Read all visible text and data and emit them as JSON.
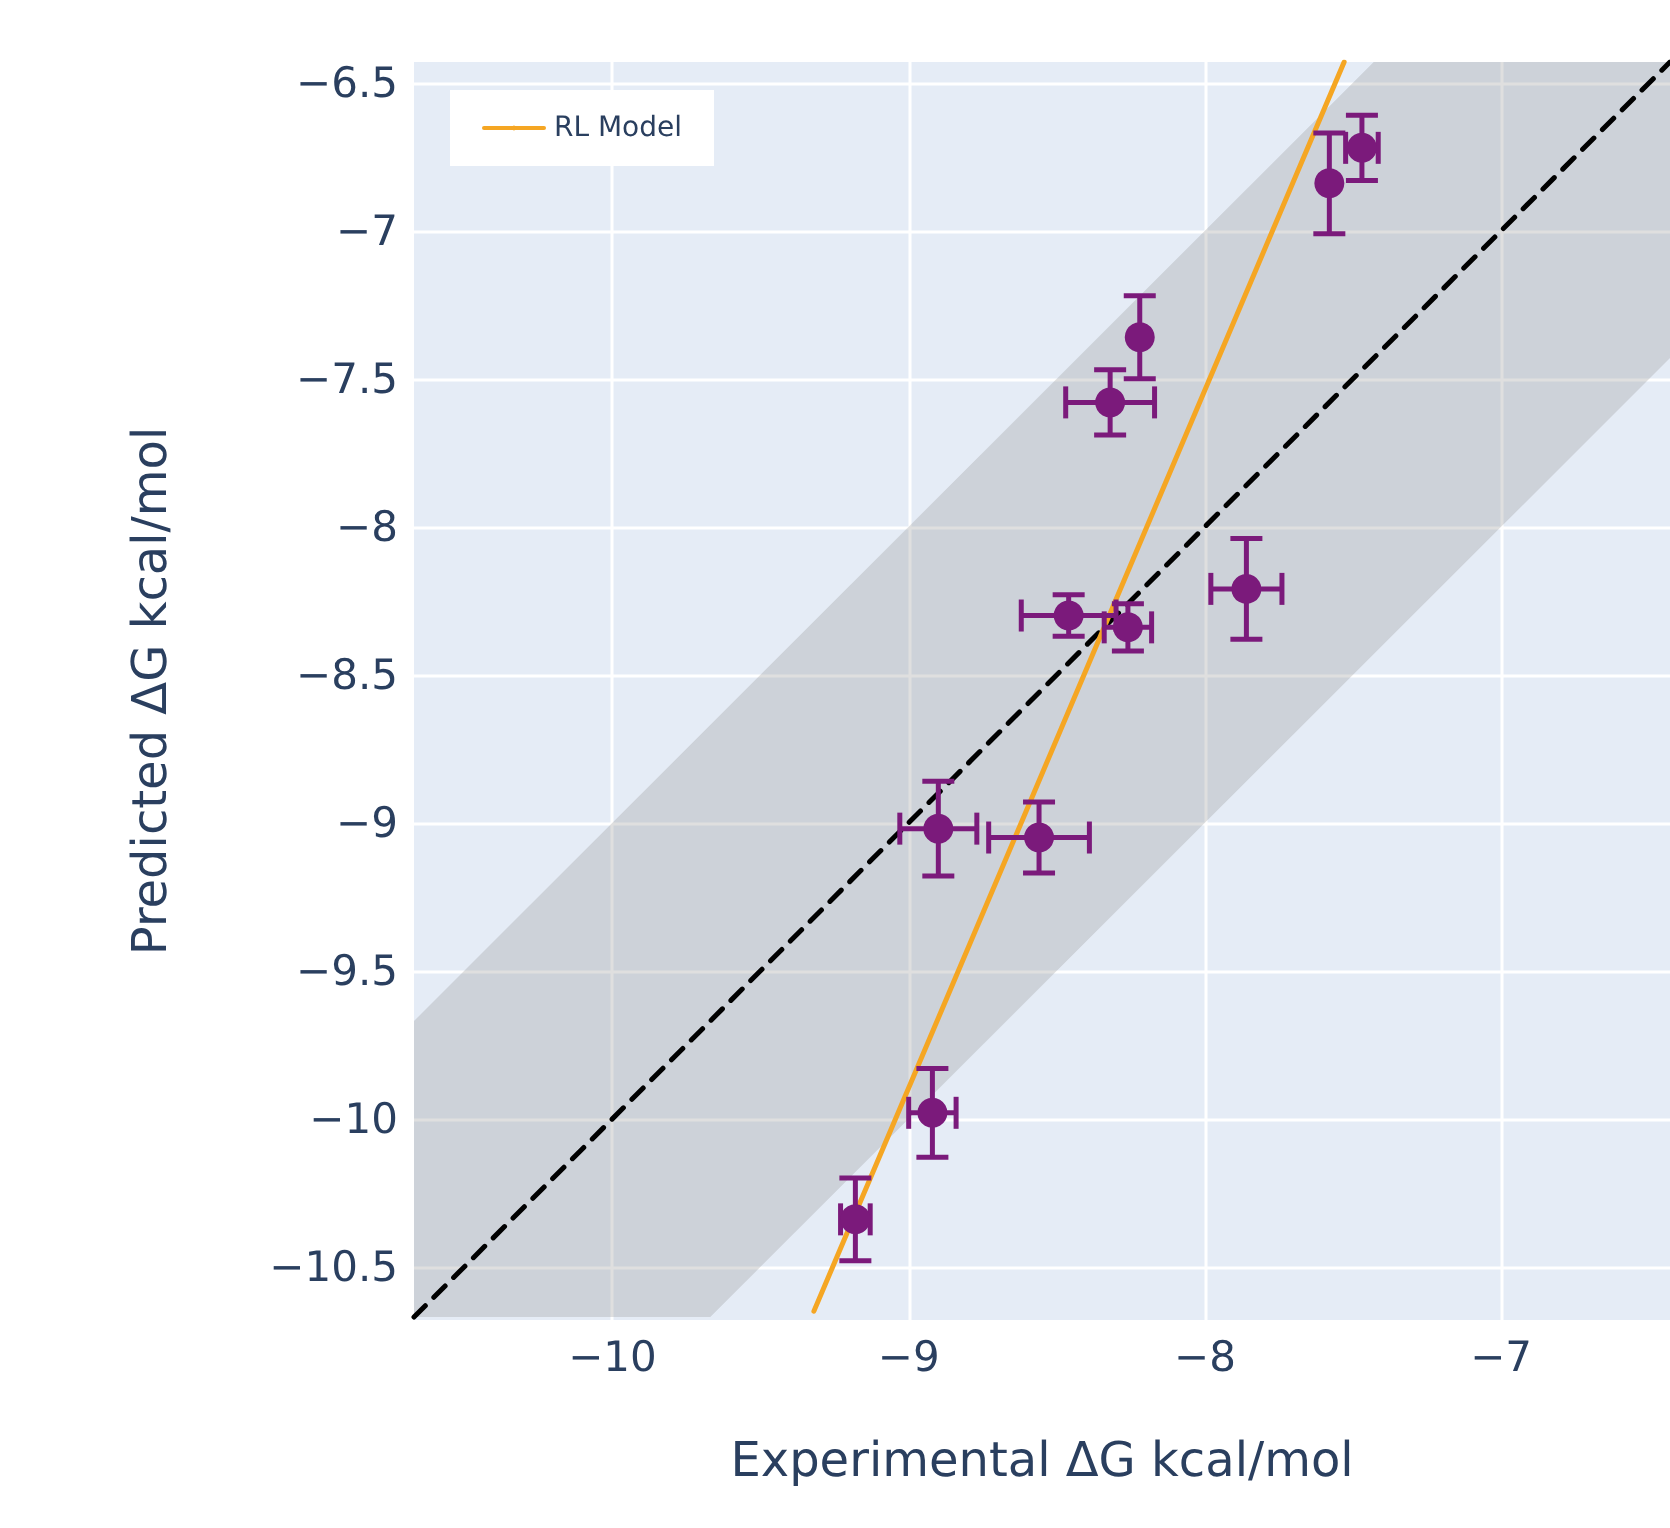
{
  "chart_data": {
    "type": "scatter",
    "xlabel": "Experimental ΔG kcal/mol",
    "ylabel": "Predicted ΔG kcal/mol",
    "xlim": [
      -10.67,
      -6.43
    ],
    "ylim": [
      -10.68,
      -6.43
    ],
    "xticks": [
      -10,
      -9,
      -8,
      -7
    ],
    "yticks": [
      -10.5,
      -10,
      -9.5,
      -9,
      -8.5,
      -8,
      -7.5,
      -7,
      -6.5
    ],
    "grid": true,
    "legend": "top left",
    "series": [
      {
        "type": "line",
        "color": "#000000",
        "line_style": "dashed",
        "marker": "none",
        "x": [
          -10.67,
          -9.67,
          -7.43,
          -6.43
        ],
        "values": [
          -10.67,
          -9.67,
          -7.43,
          -6.43
        ],
        "lower": [
          -10.67,
          -10.67,
          -8.43,
          -7.43
        ],
        "upper": [
          -9.67,
          -8.67,
          -6.43,
          -6.43
        ]
      },
      {
        "type": "line",
        "name": "RL Model",
        "color": "#f5a623",
        "line_style": "solid",
        "marker": "none",
        "x": [
          -9.32,
          -7.53
        ],
        "values": [
          -10.65,
          -6.43
        ]
      },
      {
        "type": "scatter",
        "color": "#7b1a7b",
        "marker": "circle",
        "x": [
          -7.58,
          -7.47,
          -8.22,
          -8.32,
          -7.86,
          -8.46,
          -8.26,
          -8.9,
          -8.56,
          -8.92,
          -9.18
        ],
        "values": [
          -6.84,
          -6.72,
          -7.36,
          -7.58,
          -8.21,
          -8.3,
          -8.34,
          -9.02,
          -9.05,
          -9.98,
          -10.34
        ],
        "errors": [
          0.17,
          0.11,
          0.14,
          0.11,
          0.17,
          0.07,
          0.08,
          0.16,
          0.12,
          0.15,
          0.14
        ],
        "xerrors": [
          null,
          0.055,
          null,
          0.15,
          0.12,
          0.16,
          0.08,
          0.13,
          0.17,
          0.08,
          0.05
        ]
      }
    ]
  }
}
